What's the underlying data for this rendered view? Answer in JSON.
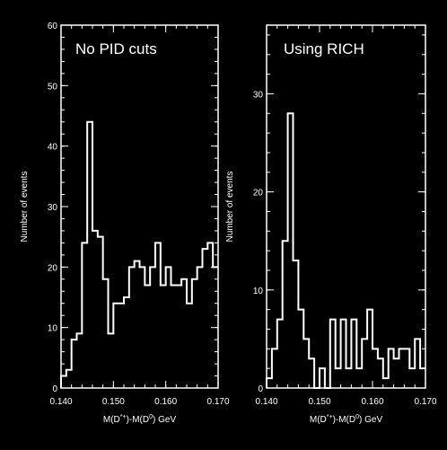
{
  "chart_data": [
    {
      "type": "histogram",
      "title": "No PID cuts",
      "xlabel": "M(D*+)-M(D0) GeV",
      "xlabel_parts": {
        "a": "M(D",
        "a_sup": "*+",
        "b": ")-M(D",
        "b_sup": "0",
        "c": ") GeV"
      },
      "ylabel": "Number of events",
      "xlim": [
        0.14,
        0.17
      ],
      "ylim": [
        0,
        60
      ],
      "xticks": [
        "0.140",
        "0.150",
        "0.160",
        "0.170"
      ],
      "xtick_values": [
        0.14,
        0.15,
        0.16,
        0.17
      ],
      "yticks": [
        "0",
        "10",
        "20",
        "30",
        "40",
        "50",
        "60"
      ],
      "ytick_values": [
        0,
        10,
        20,
        30,
        40,
        50,
        60
      ],
      "bin_edges_start": 0.14,
      "bin_width": 0.001,
      "values": [
        2,
        3,
        8,
        9,
        24,
        44,
        26,
        25,
        18,
        9,
        14,
        14,
        15,
        20,
        21,
        20,
        17,
        20,
        24,
        17,
        20,
        17,
        17,
        18,
        14,
        18,
        20,
        23,
        24,
        20
      ]
    },
    {
      "type": "histogram",
      "title": "Using RICH",
      "xlabel": "M(D*+)-M(D0) GeV",
      "xlabel_parts": {
        "a": "M(D",
        "a_sup": "*+",
        "b": ")-M(D",
        "b_sup": "0",
        "c": ") GeV"
      },
      "ylabel": "Number of events",
      "xlim": [
        0.14,
        0.17
      ],
      "ylim": [
        0,
        37
      ],
      "xticks": [
        "0.140",
        "0.150",
        "0.160",
        "0.170"
      ],
      "xtick_values": [
        0.14,
        0.15,
        0.16,
        0.17
      ],
      "yticks": [
        "0",
        "10",
        "20",
        "30"
      ],
      "ytick_values": [
        0,
        10,
        20,
        30
      ],
      "bin_edges_start": 0.14,
      "bin_width": 0.001,
      "values": [
        1,
        4,
        7,
        15,
        28,
        13,
        8,
        5,
        3,
        0,
        2,
        0,
        7,
        2,
        7,
        2,
        7,
        2,
        5,
        8,
        4,
        3,
        1,
        4,
        3,
        4,
        4,
        2,
        5,
        2
      ]
    }
  ]
}
